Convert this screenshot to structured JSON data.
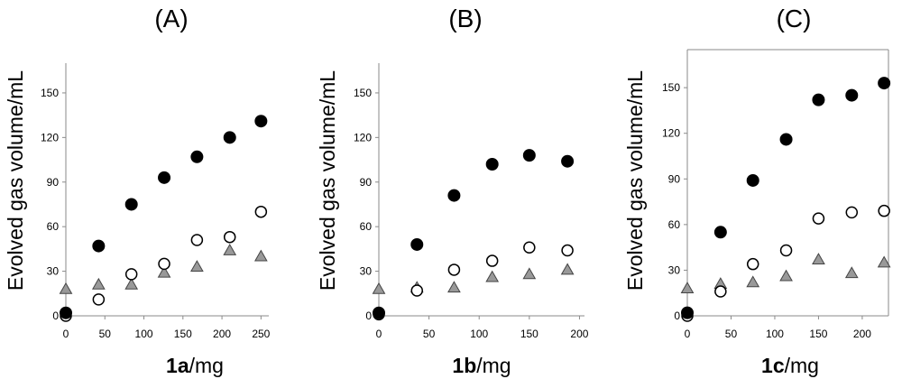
{
  "chart_data": [
    {
      "type": "scatter",
      "panel_label": "(A)",
      "xlabel": {
        "bold": "1a",
        "rest": "/mg"
      },
      "ylabel": "Evolved gas volume/mL",
      "xlim": [
        0,
        260
      ],
      "ylim": [
        0,
        170
      ],
      "xticks": [
        0,
        50,
        100,
        150,
        200,
        250
      ],
      "yticks": [
        0,
        30,
        60,
        90,
        120,
        150
      ],
      "frame": "left-bottom",
      "series": [
        {
          "name": "filled-circles",
          "marker": "filled-circle",
          "color": "#000000",
          "x": [
            0,
            42,
            84,
            126,
            168,
            210,
            250
          ],
          "y": [
            2,
            47,
            75,
            93,
            107,
            120,
            131
          ]
        },
        {
          "name": "open-circles",
          "marker": "open-circle",
          "color": "#000000",
          "x": [
            0,
            42,
            84,
            126,
            168,
            210,
            250
          ],
          "y": [
            0,
            11,
            28,
            35,
            51,
            53,
            70
          ]
        },
        {
          "name": "triangles",
          "marker": "triangle",
          "color": "#999999",
          "x": [
            0,
            42,
            84,
            126,
            168,
            210,
            250
          ],
          "y": [
            18,
            21,
            21,
            29,
            33,
            44,
            40
          ]
        }
      ]
    },
    {
      "type": "scatter",
      "panel_label": "(B)",
      "xlabel": {
        "bold": "1b",
        "rest": "/mg"
      },
      "ylabel": "Evolved gas volume/mL",
      "xlim": [
        0,
        205
      ],
      "ylim": [
        0,
        170
      ],
      "xticks": [
        0,
        50,
        100,
        150,
        200
      ],
      "yticks": [
        0,
        30,
        60,
        90,
        120,
        150
      ],
      "frame": "left-bottom",
      "series": [
        {
          "name": "filled-circles",
          "marker": "filled-circle",
          "color": "#000000",
          "x": [
            0,
            38,
            75,
            113,
            150,
            188
          ],
          "y": [
            2,
            48,
            81,
            102,
            108,
            104
          ]
        },
        {
          "name": "open-circles",
          "marker": "open-circle",
          "color": "#000000",
          "x": [
            0,
            38,
            75,
            113,
            150,
            188
          ],
          "y": [
            1,
            17,
            31,
            37,
            46,
            44
          ]
        },
        {
          "name": "triangles",
          "marker": "triangle",
          "color": "#999999",
          "x": [
            0,
            38,
            75,
            113,
            150,
            188
          ],
          "y": [
            18,
            19,
            19,
            26,
            28,
            31
          ]
        }
      ]
    },
    {
      "type": "scatter",
      "panel_label": "(C)",
      "xlabel": {
        "bold": "1c",
        "rest": "/mg"
      },
      "ylabel": "Evolved gas volume/mL",
      "xlim": [
        0,
        230
      ],
      "ylim": [
        0,
        175
      ],
      "xticks": [
        0,
        50,
        100,
        150,
        200
      ],
      "yticks": [
        0,
        30,
        60,
        90,
        120,
        150
      ],
      "frame": "box",
      "series": [
        {
          "name": "filled-circles",
          "marker": "filled-circle",
          "color": "#000000",
          "x": [
            0,
            38,
            75,
            113,
            150,
            188,
            225
          ],
          "y": [
            2,
            55,
            89,
            116,
            142,
            145,
            153
          ]
        },
        {
          "name": "open-circles",
          "marker": "open-circle",
          "color": "#000000",
          "x": [
            0,
            38,
            75,
            113,
            150,
            188,
            225
          ],
          "y": [
            0,
            16,
            34,
            43,
            64,
            68,
            69
          ]
        },
        {
          "name": "triangles",
          "marker": "triangle",
          "color": "#999999",
          "x": [
            0,
            38,
            75,
            113,
            150,
            188,
            225
          ],
          "y": [
            18,
            21,
            22,
            26,
            37,
            28,
            35
          ]
        }
      ]
    }
  ]
}
